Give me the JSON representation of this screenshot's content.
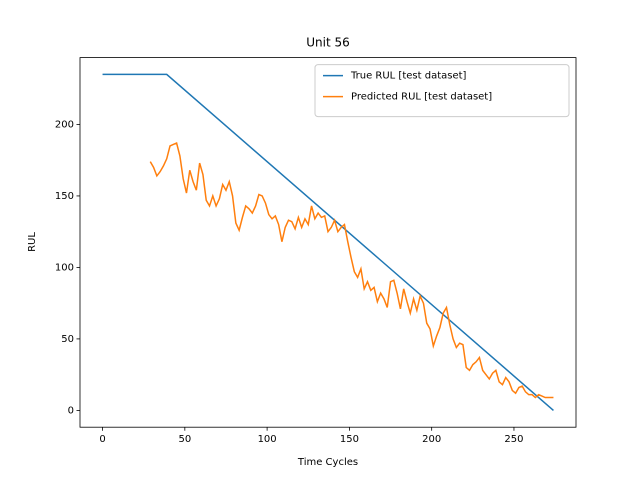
{
  "chart_data": {
    "type": "line",
    "title": "Unit 56",
    "x_label": "Time Cycles",
    "y_label": "RUL",
    "xlim": [
      -13.7,
      287.7
    ],
    "ylim": [
      -11.75,
      246.75
    ],
    "xticks": [
      0,
      50,
      100,
      150,
      200,
      250
    ],
    "yticks": [
      0,
      50,
      100,
      150,
      200
    ],
    "grid": false,
    "legend": "upper right",
    "series": [
      {
        "name": "True RUL [test dataset]",
        "color": "#1f77b4",
        "x": [
          0,
          39,
          274
        ],
        "values": [
          235,
          235,
          0
        ]
      },
      {
        "name": "Predicted RUL [test dataset]",
        "color": "#ff7f0e",
        "x": [
          29,
          31,
          33,
          35,
          37,
          39,
          41,
          43,
          45,
          47,
          49,
          51,
          53,
          55,
          57,
          59,
          61,
          63,
          65,
          67,
          69,
          71,
          73,
          75,
          77,
          79,
          81,
          83,
          85,
          87,
          89,
          91,
          93,
          95,
          97,
          99,
          101,
          103,
          105,
          107,
          109,
          111,
          113,
          115,
          117,
          119,
          121,
          123,
          125,
          127,
          129,
          131,
          133,
          135,
          137,
          139,
          141,
          143,
          145,
          147,
          149,
          151,
          153,
          155,
          157,
          159,
          161,
          163,
          165,
          167,
          169,
          171,
          173,
          175,
          177,
          179,
          181,
          183,
          185,
          187,
          189,
          191,
          193,
          195,
          197,
          199,
          201,
          203,
          205,
          207,
          209,
          211,
          213,
          215,
          217,
          219,
          221,
          223,
          225,
          227,
          229,
          231,
          233,
          235,
          237,
          239,
          241,
          243,
          245,
          247,
          249,
          251,
          253,
          255,
          257,
          259,
          261,
          263,
          265,
          267,
          269,
          271,
          274
        ],
        "values": [
          174,
          170,
          164,
          167,
          171,
          176,
          185,
          186,
          187,
          178,
          162,
          152,
          168,
          160,
          154,
          173,
          165,
          147,
          143,
          150,
          143,
          148,
          158,
          154,
          160,
          150,
          131,
          126,
          135,
          143,
          141,
          138,
          143,
          151,
          150,
          145,
          137,
          134,
          136,
          130,
          118,
          128,
          133,
          132,
          127,
          135,
          128,
          134,
          130,
          143,
          134,
          138,
          135,
          136,
          125,
          128,
          133,
          125,
          128,
          130,
          118,
          107,
          97,
          93,
          99,
          85,
          90,
          84,
          86,
          76,
          82,
          78,
          72,
          90,
          91,
          82,
          71,
          85,
          76,
          68,
          78,
          70,
          80,
          75,
          61,
          57,
          45,
          52,
          58,
          68,
          72,
          60,
          50,
          44,
          47,
          46,
          30,
          28,
          32,
          34,
          37,
          28,
          25,
          22,
          26,
          28,
          20,
          18,
          23,
          20,
          14,
          12,
          16,
          17,
          13,
          11,
          11,
          9,
          11,
          10,
          9,
          9,
          9
        ]
      }
    ]
  }
}
